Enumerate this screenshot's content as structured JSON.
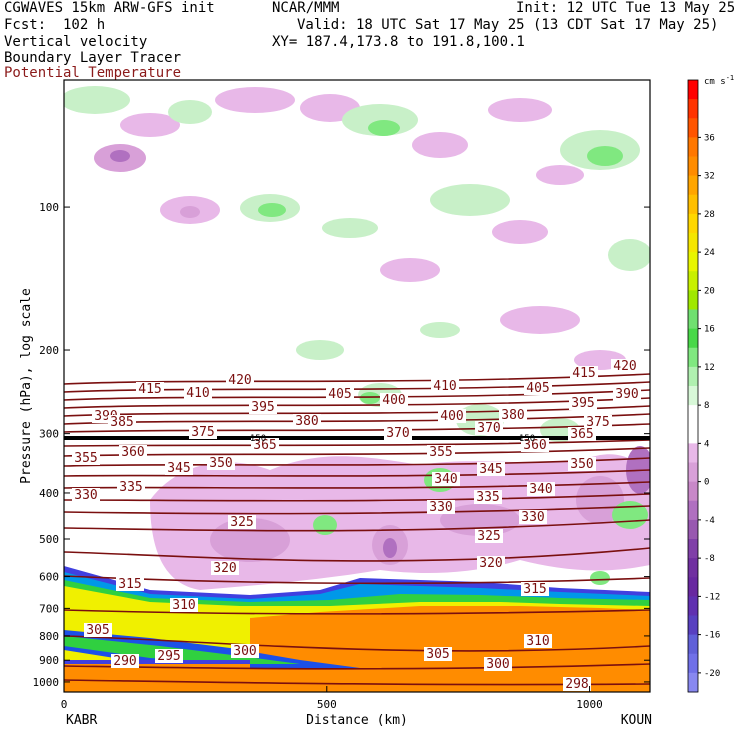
{
  "header": {
    "model": "CGWAVES 15km ARW-GFS init",
    "org": "NCAR/MMM",
    "init": "Init: 12 UTC Tue 13 May 25",
    "fcst": "Fcst:  102 h",
    "valid": "Valid: 18 UTC Sat 17 May 25 (13 CDT Sat 17 May 25)",
    "field1": "Vertical velocity",
    "xy": "XY= 187.4,173.8 to 191.8,100.1",
    "field2": "Boundary Layer Tracer",
    "field3": "Potential Temperature"
  },
  "colors": {
    "theta": "#7a0f0f",
    "frame": "#000000"
  },
  "chart_data": {
    "type": "heatmap",
    "ylabel": "Pressure (hPa), log scale",
    "xlabel": "Distance (km)",
    "x_ticks": [
      0,
      500,
      1000
    ],
    "x_end_labels": [
      "KABR",
      "KOUN"
    ],
    "y_ticks": [
      100,
      200,
      300,
      400,
      500,
      600,
      700,
      800,
      900,
      1000
    ],
    "xlim": [
      0,
      1115
    ],
    "colorbar": {
      "unit": "cm s",
      "unit_exp": "-1",
      "labels": [
        36,
        32,
        28,
        24,
        20,
        16,
        12,
        8,
        4,
        0,
        -4,
        -8,
        -12,
        -16,
        -20
      ],
      "colors": [
        "#ff0000",
        "#ff3300",
        "#ff5500",
        "#ff7700",
        "#ff8c00",
        "#ffa500",
        "#ffbf00",
        "#ffd700",
        "#f5e600",
        "#e8f500",
        "#c8f000",
        "#a0e800",
        "#70e070",
        "#48d848",
        "#80e880",
        "#b0f0b0",
        "#d8f8d8",
        "#ffffff",
        "#ffffff",
        "#e8b8e8",
        "#d8a0d8",
        "#c888c8",
        "#b070c0",
        "#9858b0",
        "#8040a8",
        "#7030a0",
        "#6828a0",
        "#6030b0",
        "#5840c0",
        "#6060d8",
        "#7070e8",
        "#8888f0"
      ]
    },
    "theta_labels": [
      "415",
      "410",
      "420",
      "405",
      "400",
      "410",
      "405",
      "415",
      "420",
      "395",
      "400",
      "390",
      "395",
      "390",
      "385",
      "380",
      "380",
      "375",
      "375",
      "370",
      "370",
      "365",
      "365",
      "360",
      "355",
      "360",
      "355",
      "345",
      "350",
      "345",
      "350",
      "340",
      "340",
      "335",
      "335",
      "330",
      "330",
      "330",
      "325",
      "325",
      "320",
      "320",
      "315",
      "315",
      "310",
      "310",
      "305",
      "305",
      "300",
      "300",
      "295",
      "290",
      "298"
    ],
    "tropopause_markers": [
      "150",
      "150"
    ]
  }
}
